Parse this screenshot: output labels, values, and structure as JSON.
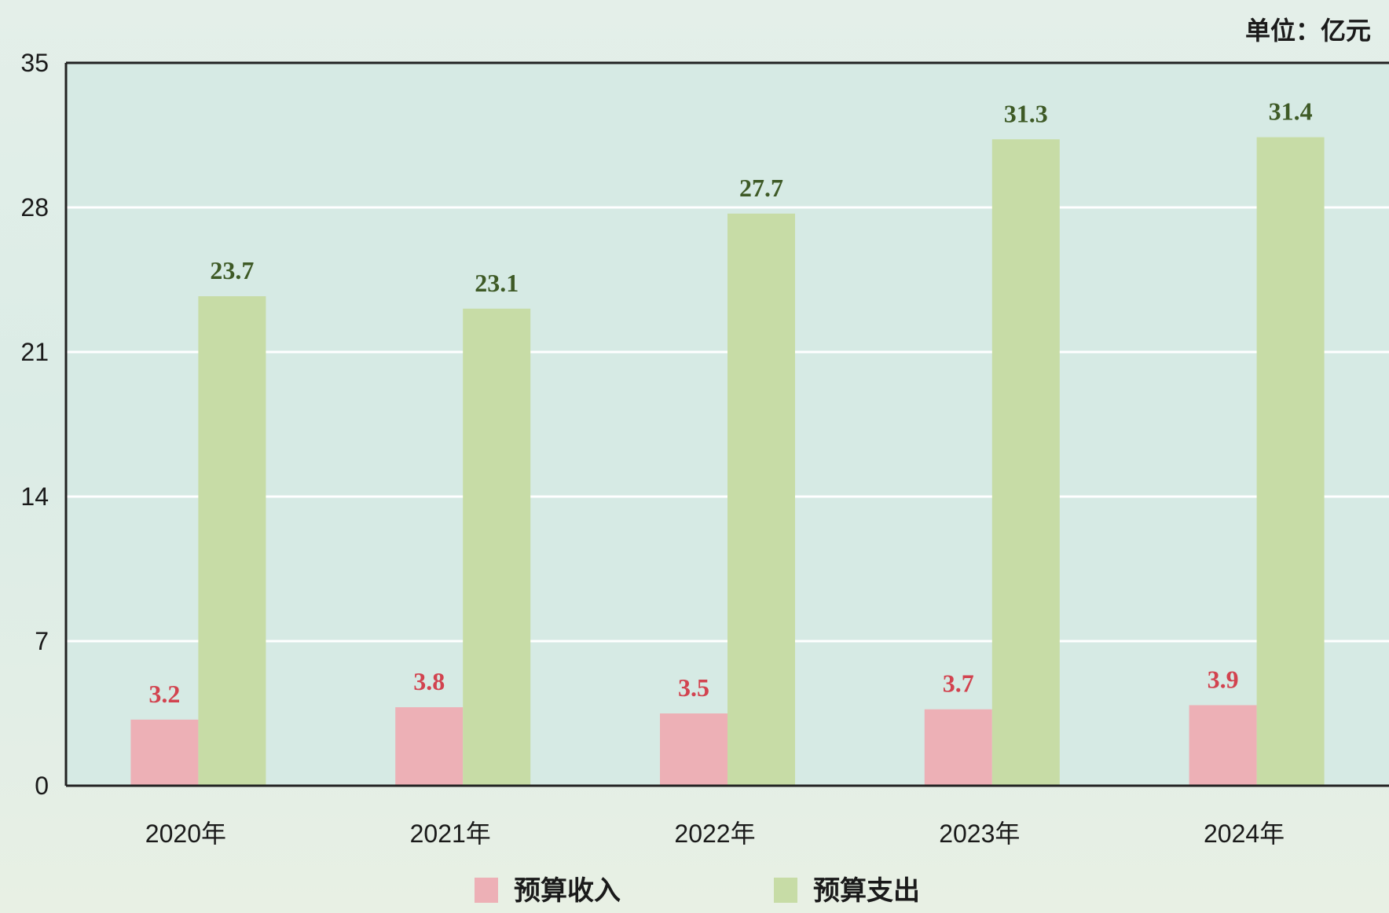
{
  "unit_label": "单位：亿元",
  "colors": {
    "plot_background": "#d6eae4",
    "gridline": "#ffffff",
    "axis": "#222222",
    "income": "#edb0b6",
    "expense": "#c7dca6",
    "income_label": "#d2434f",
    "expense_label": "#3e5a26"
  },
  "chart_data": {
    "type": "bar",
    "categories": [
      "2020年",
      "2021年",
      "2022年",
      "2023年",
      "2024年"
    ],
    "series": [
      {
        "name": "预算收入",
        "values": [
          3.2,
          3.8,
          3.5,
          3.7,
          3.9
        ]
      },
      {
        "name": "预算支出",
        "values": [
          23.7,
          23.1,
          27.7,
          31.3,
          31.4
        ]
      }
    ],
    "ylim": [
      0,
      35
    ],
    "yticks": [
      0,
      7,
      14,
      21,
      28,
      35
    ],
    "grid": true,
    "legend": "bottom",
    "unit": "单位：亿元"
  }
}
